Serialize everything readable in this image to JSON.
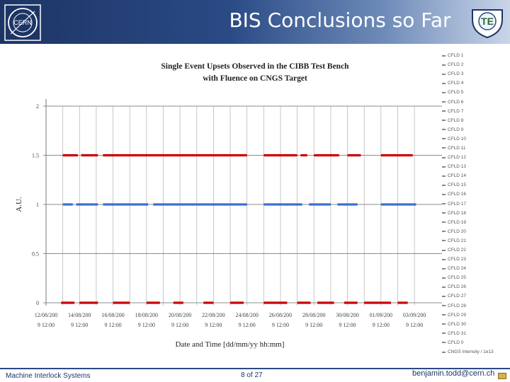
{
  "header": {
    "title": "BIS Conclusions so Far",
    "te_logo_text": "TE",
    "cern_logo_text": "CERN"
  },
  "footer": {
    "left": "Machine Interlock Systems",
    "page": "8 of 27",
    "email": "benjamin.todd@cern.ch"
  },
  "colors": {
    "header_start": "#1d3566",
    "header_end": "#c9d5e8",
    "series_red": "#cc0000",
    "series_blue": "#3a6fd0"
  },
  "legend": [
    "CFLD 1",
    "CFLD 2",
    "CFLD 3",
    "CFLD 4",
    "CFLD 5",
    "CFLD 6",
    "CFLD 7",
    "CFLD 8",
    "CFLD 9",
    "CFLD 10",
    "CFLD 11",
    "CFLD 12",
    "CFLD 13",
    "CFLD 14",
    "CFLD 15",
    "CFLD 16",
    "CFLD 17",
    "CFLD 18",
    "CFLD 19",
    "CFLD 20",
    "CFLD 21",
    "CFLD 22",
    "CFLD 23",
    "CFLD 24",
    "CFLD 25",
    "CFLD 26",
    "CFLD 27",
    "CFLD 28",
    "CFLD 29",
    "CFLD 30",
    "CFLD 31",
    "CFLD 0",
    "CNGS Intensity / 1e13"
  ],
  "chart_data": {
    "type": "scatter",
    "title": "Single Event Upsets Observed in the CIBB Test Bench",
    "subtitle": "with Fluence on CNGS Target",
    "xlabel": "Date and Time [dd/mm/yy hh:mm]",
    "ylabel": "A.U.",
    "ylim": [
      0,
      2
    ],
    "yticks": [
      "0",
      "0.5",
      "1",
      "1.5",
      "2"
    ],
    "xticks": [
      {
        "line1": "12/08/200",
        "line2": "9 12:00"
      },
      {
        "line1": "14/08/200",
        "line2": "9 12:00"
      },
      {
        "line1": "16/08/200",
        "line2": "9 12:00"
      },
      {
        "line1": "18/08/200",
        "line2": "9 12:00"
      },
      {
        "line1": "20/08/200",
        "line2": "9 12:00"
      },
      {
        "line1": "22/08/200",
        "line2": "9 12:00"
      },
      {
        "line1": "24/08/200",
        "line2": "9 12:00"
      },
      {
        "line1": "26/08/200",
        "line2": "9 12:00"
      },
      {
        "line1": "28/08/200",
        "line2": "9 12:00"
      },
      {
        "line1": "30/08/200",
        "line2": "9 12:00"
      },
      {
        "line1": "01/09/200",
        "line2": "9 12:00"
      },
      {
        "line1": "03/09/200",
        "line2": "9 12:00"
      }
    ],
    "xlim_ticks": [
      0,
      11.4
    ],
    "series": [
      {
        "name": "CNGS Intensity / 1e13",
        "color": "#3a6fd0",
        "y": 1.0,
        "intervals": [
          [
            0.5,
            0.8
          ],
          [
            0.9,
            1.55
          ],
          [
            1.7,
            3.05
          ],
          [
            3.2,
            6.0
          ],
          [
            6.5,
            7.65
          ],
          [
            7.85,
            8.5
          ],
          [
            8.7,
            9.3
          ],
          [
            10.0,
            11.05
          ]
        ]
      },
      {
        "name": "CFLD",
        "color": "#cc0000",
        "y": 1.5,
        "intervals": [
          [
            0.5,
            0.95
          ],
          [
            1.05,
            1.55
          ],
          [
            1.7,
            6.0
          ],
          [
            6.5,
            7.5
          ],
          [
            7.6,
            7.8
          ],
          [
            8.0,
            8.75
          ],
          [
            9.0,
            9.4
          ],
          [
            10.0,
            10.95
          ]
        ]
      },
      {
        "name": "CFLD",
        "color": "#cc0000",
        "y": 0.0,
        "intervals": [
          [
            0.45,
            0.85
          ],
          [
            1.0,
            1.55
          ],
          [
            2.0,
            2.5
          ],
          [
            3.0,
            3.4
          ],
          [
            3.8,
            4.1
          ],
          [
            4.7,
            5.0
          ],
          [
            5.5,
            5.9
          ],
          [
            6.5,
            7.2
          ],
          [
            7.5,
            7.9
          ],
          [
            8.1,
            8.6
          ],
          [
            8.9,
            9.3
          ],
          [
            9.5,
            10.3
          ],
          [
            10.5,
            10.8
          ]
        ]
      }
    ],
    "legend_position": "right",
    "grid": true
  }
}
